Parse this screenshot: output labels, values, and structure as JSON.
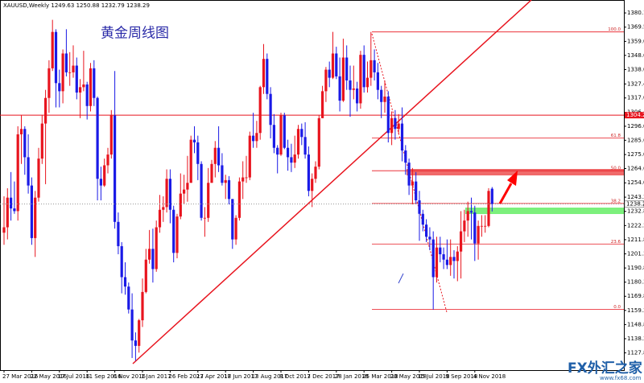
{
  "chart_data": {
    "type": "candlestick",
    "title": "XAUUSD,Weekly",
    "annotation": "黄金周线图",
    "up_color": "#e8141e",
    "down_color": "#1a1ae6",
    "categories": [
      "27 Mar 2016",
      null,
      null,
      null,
      null,
      null,
      null,
      null,
      "22 May 2016",
      null,
      null,
      null,
      null,
      null,
      null,
      null,
      "17 Jul 2016",
      null,
      null,
      null,
      null,
      null,
      null,
      null,
      "11 Sep 2016",
      null,
      null,
      null,
      null,
      null,
      null,
      null,
      "6 Nov 2016",
      null,
      null,
      null,
      null,
      null,
      null,
      null,
      "1 Jan 2017",
      null,
      null,
      null,
      null,
      null,
      null,
      null,
      "26 Feb 2017",
      null,
      null,
      null,
      null,
      null,
      null,
      null,
      "23 Apr 2017",
      null,
      null,
      null,
      null,
      null,
      null,
      null,
      "18 Jun 2017",
      null,
      null,
      null,
      null,
      null,
      null,
      null,
      "13 Aug 2017",
      null,
      null,
      null,
      null,
      null,
      null,
      null,
      "8 Oct 2017",
      null,
      null,
      null,
      null,
      null,
      null,
      null,
      "3 Dec 2017",
      null,
      null,
      null,
      null,
      null,
      null,
      null,
      "28 Jan 2018",
      null,
      null,
      null,
      null,
      null,
      null,
      null,
      "25 Mar 2018",
      null,
      null,
      null,
      null,
      null,
      null,
      null,
      "20 May 2018",
      null,
      null,
      null,
      null,
      null,
      null,
      null,
      "15 Jul 2018",
      null,
      null,
      null,
      null,
      null,
      null,
      null,
      "9 Sep 2018",
      null,
      null,
      null,
      null,
      null,
      null,
      null,
      "4 Nov 2018",
      null,
      null,
      null,
      null,
      null
    ],
    "open": [
      1217,
      1221,
      1243,
      1235,
      1233,
      1290,
      1294,
      1273,
      1252,
      1213,
      1243,
      1272,
      1298,
      1317,
      1339,
      1366,
      1328,
      1322,
      1350,
      1336,
      1336,
      1341,
      1321,
      1325,
      1327,
      1311,
      1339,
      1317,
      1257,
      1252,
      1267,
      1275,
      1304,
      1225,
      1207,
      1184,
      1177,
      1160,
      1137,
      1133,
      1152,
      1173,
      1197,
      1205,
      1190,
      1221,
      1234,
      1236,
      1257,
      1234,
      1202,
      1229,
      1246,
      1249,
      1254,
      1286,
      1284,
      1268,
      1228,
      1228,
      1254,
      1268,
      1280,
      1267,
      1254,
      1256,
      1242,
      1212,
      1228,
      1255,
      1258,
      1258,
      1289,
      1285,
      1291,
      1325,
      1346,
      1320,
      1297,
      1280,
      1275,
      1304,
      1280,
      1273,
      1269,
      1275,
      1294,
      1288,
      1275,
      1248,
      1257,
      1266,
      1302,
      1322,
      1338,
      1332,
      1350,
      1333,
      1315,
      1347,
      1330,
      1323,
      1324,
      1313,
      1349,
      1325,
      1332,
      1345,
      1336,
      1323,
      1314,
      1318,
      1291,
      1302,
      1294,
      1298,
      1278,
      1269,
      1252,
      1255,
      1241,
      1231,
      1223,
      1214,
      1212,
      1184,
      1206,
      1201,
      1197,
      1193,
      1199,
      1196,
      1203,
      1218,
      1226,
      1233,
      1232,
      1209,
      1222,
      1222,
      1222,
      1249.63
    ],
    "high": [
      1244,
      1250,
      1262,
      1255,
      1296,
      1304,
      1296,
      1290,
      1258,
      1248,
      1280,
      1304,
      1323,
      1345,
      1375,
      1368,
      1338,
      1353,
      1368,
      1351,
      1356,
      1347,
      1331,
      1352,
      1329,
      1343,
      1345,
      1318,
      1266,
      1272,
      1280,
      1308,
      1337,
      1232,
      1210,
      1195,
      1180,
      1172,
      1143,
      1153,
      1183,
      1205,
      1219,
      1220,
      1226,
      1245,
      1244,
      1264,
      1264,
      1237,
      1231,
      1261,
      1260,
      1274,
      1289,
      1296,
      1289,
      1270,
      1236,
      1265,
      1271,
      1285,
      1296,
      1276,
      1260,
      1259,
      1242,
      1230,
      1258,
      1270,
      1274,
      1292,
      1306,
      1300,
      1326,
      1357,
      1350,
      1325,
      1305,
      1282,
      1306,
      1306,
      1286,
      1283,
      1289,
      1297,
      1298,
      1299,
      1281,
      1261,
      1270,
      1304,
      1326,
      1340,
      1344,
      1366,
      1355,
      1347,
      1361,
      1356,
      1341,
      1341,
      1329,
      1352,
      1356,
      1344,
      1366,
      1353,
      1343,
      1326,
      1330,
      1322,
      1307,
      1308,
      1305,
      1310,
      1282,
      1272,
      1265,
      1262,
      1248,
      1234,
      1227,
      1221,
      1218,
      1214,
      1214,
      1206,
      1212,
      1212,
      1204,
      1207,
      1233,
      1234,
      1240,
      1243,
      1237,
      1226,
      1230,
      1230,
      1250,
      1250.88
    ],
    "low": [
      1208,
      1212,
      1226,
      1231,
      1226,
      1268,
      1260,
      1246,
      1208,
      1199,
      1240,
      1268,
      1253,
      1306,
      1337,
      1310,
      1310,
      1313,
      1333,
      1326,
      1332,
      1316,
      1302,
      1322,
      1301,
      1307,
      1311,
      1241,
      1241,
      1251,
      1261,
      1272,
      1220,
      1201,
      1172,
      1171,
      1157,
      1124,
      1122,
      1128,
      1147,
      1172,
      1194,
      1180,
      1188,
      1217,
      1225,
      1232,
      1224,
      1195,
      1198,
      1227,
      1238,
      1240,
      1254,
      1276,
      1256,
      1226,
      1214,
      1225,
      1254,
      1258,
      1262,
      1252,
      1242,
      1238,
      1205,
      1208,
      1226,
      1242,
      1254,
      1256,
      1280,
      1280,
      1286,
      1320,
      1316,
      1287,
      1276,
      1261,
      1274,
      1279,
      1263,
      1262,
      1265,
      1272,
      1282,
      1272,
      1244,
      1236,
      1254,
      1264,
      1302,
      1314,
      1325,
      1331,
      1331,
      1307,
      1314,
      1323,
      1303,
      1316,
      1307,
      1309,
      1321,
      1321,
      1326,
      1330,
      1316,
      1302,
      1306,
      1284,
      1282,
      1286,
      1290,
      1270,
      1260,
      1245,
      1238,
      1238,
      1211,
      1218,
      1210,
      1204,
      1160,
      1180,
      1195,
      1190,
      1190,
      1185,
      1183,
      1181,
      1183,
      1210,
      1214,
      1212,
      1196,
      1197,
      1214,
      1217,
      1221,
      1232.79
    ],
    "close": [
      1221,
      1243,
      1235,
      1233,
      1290,
      1294,
      1273,
      1252,
      1213,
      1243,
      1272,
      1298,
      1317,
      1339,
      1366,
      1328,
      1322,
      1350,
      1336,
      1336,
      1341,
      1321,
      1325,
      1327,
      1311,
      1339,
      1317,
      1257,
      1252,
      1267,
      1275,
      1304,
      1225,
      1207,
      1184,
      1177,
      1160,
      1137,
      1133,
      1152,
      1173,
      1197,
      1205,
      1190,
      1221,
      1234,
      1236,
      1257,
      1234,
      1202,
      1229,
      1246,
      1249,
      1254,
      1286,
      1284,
      1268,
      1228,
      1228,
      1254,
      1268,
      1280,
      1267,
      1254,
      1256,
      1242,
      1212,
      1228,
      1255,
      1258,
      1258,
      1289,
      1285,
      1291,
      1325,
      1346,
      1320,
      1297,
      1280,
      1275,
      1304,
      1280,
      1273,
      1269,
      1275,
      1294,
      1288,
      1275,
      1248,
      1257,
      1266,
      1302,
      1322,
      1338,
      1332,
      1350,
      1333,
      1315,
      1347,
      1330,
      1323,
      1324,
      1313,
      1349,
      1325,
      1332,
      1345,
      1336,
      1323,
      1314,
      1318,
      1291,
      1302,
      1294,
      1298,
      1278,
      1269,
      1252,
      1255,
      1241,
      1231,
      1223,
      1214,
      1212,
      1184,
      1206,
      1201,
      1197,
      1193,
      1199,
      1196,
      1203,
      1218,
      1226,
      1233,
      1232,
      1209,
      1222,
      1222,
      1222,
      1248,
      1238.29
    ],
    "ylim": [
      1115,
      1389.7
    ],
    "yticks": [
      {
        "value": 1380.1,
        "label": "1380.10"
      },
      1369.55,
      {
        "value": 1359,
        "label": "1359.00"
      },
      {
        "value": 1348.6,
        "label": "1348.60"
      },
      1338.05,
      {
        "value": 1327.4,
        "label": "1327.40"
      },
      {
        "value": 1317,
        "label": "1317.00"
      },
      {
        "value": 1306.4,
        "label": "1306.40"
      },
      {
        "value": 1296,
        "label": "1296.00"
      },
      {
        "value": 1285.6,
        "label": "1285.60"
      },
      {
        "value": 1275,
        "label": "1275.00"
      },
      {
        "value": 1264.6,
        "label": "1264.60"
      },
      {
        "value": 1254,
        "label": "1254.00"
      },
      1243.35,
      {
        "value": 1232.8,
        "label": "1232.80"
      },
      {
        "value": 1222.3,
        "label": "1222.30"
      },
      {
        "value": 1211.8,
        "label": "1211.80"
      },
      {
        "value": 1201.3,
        "label": "1201.30"
      },
      {
        "value": 1190.8,
        "label": "1190.80"
      },
      {
        "value": 1180.3,
        "label": "1180.30"
      },
      {
        "value": 1169.8,
        "label": "1169.80"
      },
      {
        "value": 1159.3,
        "label": "1159.30"
      },
      {
        "value": 1148.8,
        "label": "1148.80"
      },
      {
        "value": 1138.3,
        "label": "1138.30"
      },
      {
        "value": 1127.8,
        "label": "1127.80"
      }
    ],
    "hline": 1304.23,
    "fib_levels": [
      {
        "value": 1366,
        "label": "100.0"
      },
      {
        "value": 1287.3,
        "label": "61.8"
      },
      {
        "value": 1263,
        "label": "50.0"
      },
      {
        "value": 1238.7,
        "label": "38.2"
      },
      {
        "value": 1208.6,
        "label": "23.6"
      },
      {
        "value": 1160,
        "label": "0.0"
      }
    ]
  },
  "watermark": {
    "brand": "FX外汇之家",
    "url": "www.fx68.com"
  }
}
